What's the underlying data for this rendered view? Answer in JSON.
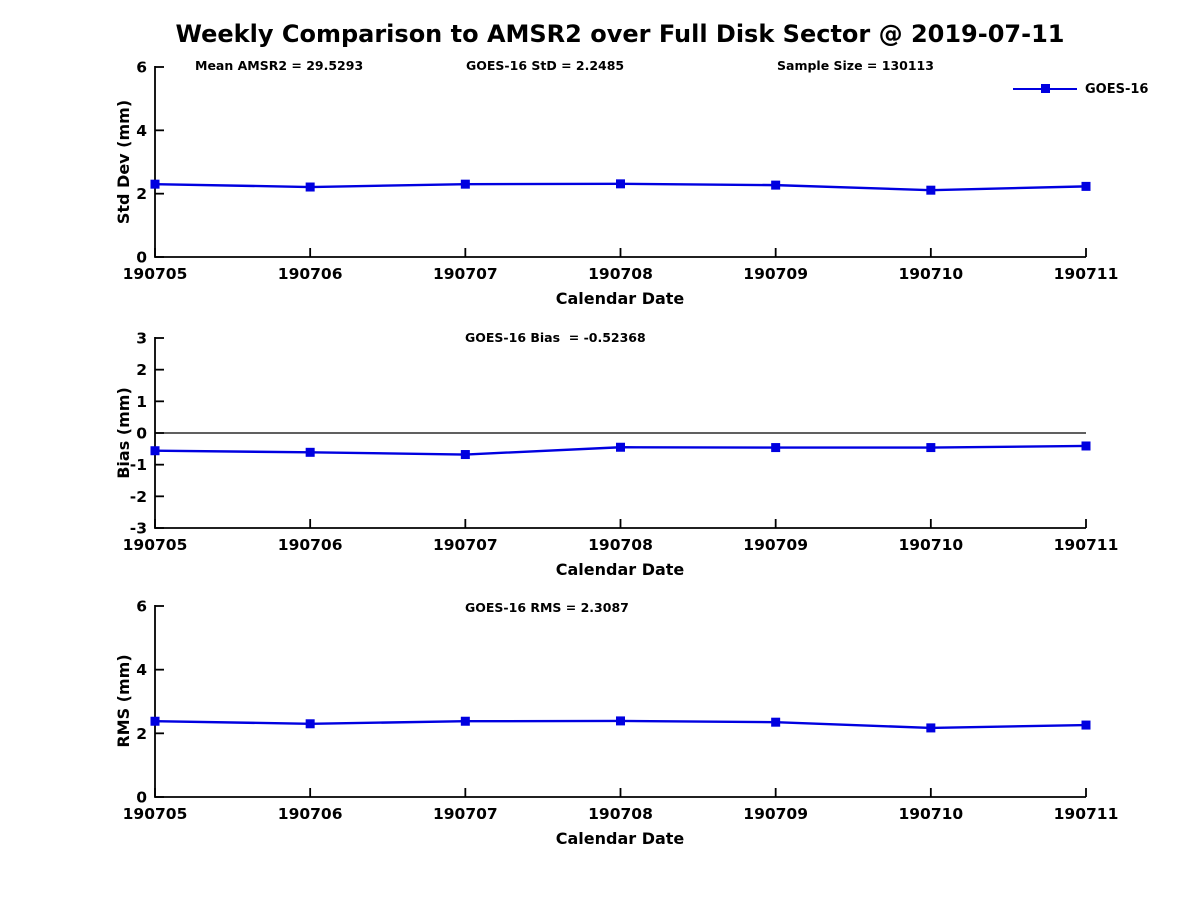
{
  "title": "Weekly Comparison to AMSR2 over Full Disk Sector @ 2019-07-11",
  "legend": {
    "label": "GOES-16",
    "position": "top-right"
  },
  "colors": {
    "series": "#0000e0",
    "axis": "#000000",
    "zero_line": "#000000",
    "text": "#000000",
    "background": "#ffffff"
  },
  "chart_data": [
    {
      "type": "line",
      "panel": "std-dev",
      "ylabel": "Std Dev (mm)",
      "xlabel": "Calendar Date",
      "categories": [
        "190705",
        "190706",
        "190707",
        "190708",
        "190709",
        "190710",
        "190711"
      ],
      "series": [
        {
          "name": "GOES-16",
          "values": [
            2.3,
            2.21,
            2.3,
            2.31,
            2.27,
            2.11,
            2.23
          ]
        }
      ],
      "ylim": [
        0,
        6
      ],
      "yticks": [
        0,
        2,
        4,
        6
      ],
      "zero_line": false,
      "grid": false,
      "marker": "square",
      "annotations": [
        {
          "text": "Mean AMSR2 = 29.5293"
        },
        {
          "text": "GOES-16 StD = 2.2485"
        },
        {
          "text": "Sample Size = 130113"
        }
      ]
    },
    {
      "type": "line",
      "panel": "bias",
      "ylabel": "Bias (mm)",
      "xlabel": "Calendar Date",
      "categories": [
        "190705",
        "190706",
        "190707",
        "190708",
        "190709",
        "190710",
        "190711"
      ],
      "series": [
        {
          "name": "GOES-16",
          "values": [
            -0.56,
            -0.61,
            -0.68,
            -0.45,
            -0.46,
            -0.46,
            -0.41
          ]
        }
      ],
      "ylim": [
        -3,
        3
      ],
      "yticks": [
        -3,
        -2,
        -1,
        0,
        1,
        2,
        3
      ],
      "zero_line": true,
      "grid": false,
      "marker": "square",
      "annotations": [
        {
          "text": "GOES-16 Bias  = -0.52368"
        }
      ]
    },
    {
      "type": "line",
      "panel": "rms",
      "ylabel": "RMS (mm)",
      "xlabel": "Calendar Date",
      "categories": [
        "190705",
        "190706",
        "190707",
        "190708",
        "190709",
        "190710",
        "190711"
      ],
      "series": [
        {
          "name": "GOES-16",
          "values": [
            2.38,
            2.3,
            2.38,
            2.39,
            2.35,
            2.17,
            2.26
          ]
        }
      ],
      "ylim": [
        0,
        6
      ],
      "yticks": [
        0,
        2,
        4,
        6
      ],
      "zero_line": false,
      "grid": false,
      "marker": "square",
      "annotations": [
        {
          "text": "GOES-16 RMS = 2.3087"
        }
      ]
    }
  ]
}
